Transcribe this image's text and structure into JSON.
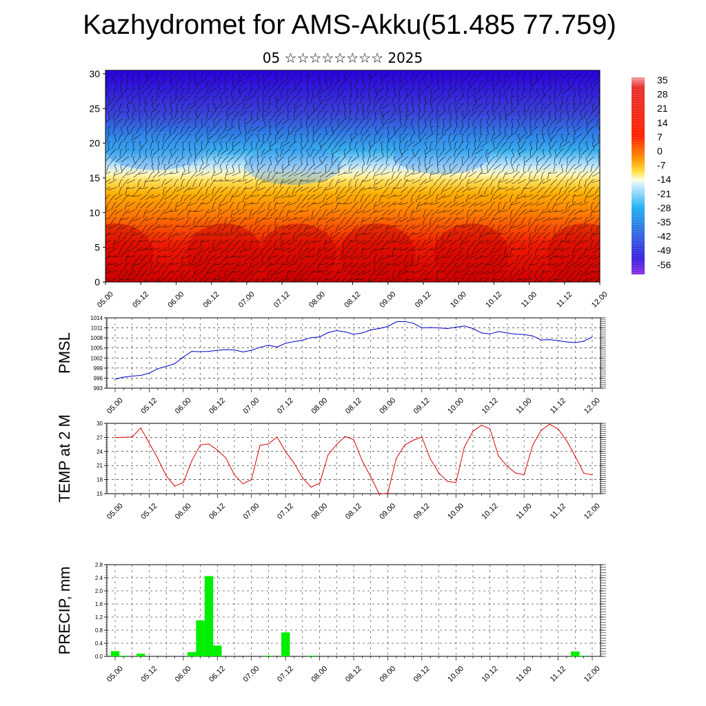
{
  "title": "Kazhydromet for AMS-Akku(51.485 77.759)",
  "subtitle": "05 ☆☆☆☆☆☆☆☆ 2025",
  "colorbar": {
    "labels": [
      "35",
      "28",
      "21",
      "14",
      "7",
      "0",
      "-7",
      "-14",
      "-21",
      "-28",
      "-35",
      "-42",
      "-49",
      "-56"
    ]
  },
  "chart_data": [
    {
      "type": "heatmap",
      "name": "cross-section",
      "x_ticks": [
        "05.00",
        "05.12",
        "06.00",
        "06.12",
        "07.00",
        "07.12",
        "08.00",
        "08.12",
        "09.00",
        "09.12",
        "10.00",
        "10.12",
        "11.00",
        "11.12",
        "12.00"
      ],
      "y_ticks": [
        "0",
        "5",
        "10",
        "15",
        "20",
        "25",
        "30"
      ],
      "ylim": [
        0,
        30.5
      ],
      "zlim": [
        -56,
        35
      ],
      "description_levels_vs_time": "temperature field: warm (red) near 0-8, cold (blue) above 20; wind barbs overlaid"
    },
    {
      "type": "line",
      "ylabel": "PMSL",
      "color": "#0000cc",
      "ylim": [
        993,
        1014
      ],
      "y_ticks": [
        "993",
        "996",
        "999",
        "1002",
        "1005",
        "1008",
        "1011",
        "1014"
      ],
      "x_ticks": [
        "05.00",
        "05.12",
        "06.00",
        "06.12",
        "07.00",
        "07.12",
        "08.00",
        "08.12",
        "09.00",
        "09.12",
        "10.00",
        "10.12",
        "11.00",
        "11.12",
        "12.00"
      ],
      "x": [
        "05.00",
        "05.03",
        "05.06",
        "05.09",
        "05.12",
        "05.15",
        "05.18",
        "05.21",
        "06.00",
        "06.03",
        "06.06",
        "06.09",
        "06.12",
        "06.15",
        "06.18",
        "06.21",
        "07.00",
        "07.03",
        "07.06",
        "07.09",
        "07.12",
        "07.15",
        "07.18",
        "07.21",
        "08.00",
        "08.03",
        "08.06",
        "08.09",
        "08.12",
        "08.15",
        "08.18",
        "08.21",
        "09.00",
        "09.03",
        "09.06",
        "09.09",
        "09.12",
        "09.15",
        "09.18",
        "09.21",
        "10.00",
        "10.03",
        "10.06",
        "10.09",
        "10.12",
        "10.15",
        "10.18",
        "10.21",
        "11.00",
        "11.03",
        "11.06",
        "11.09",
        "11.12",
        "11.15",
        "11.18",
        "11.21",
        "12.00"
      ],
      "values": [
        995.7,
        996.3,
        996.6,
        996.8,
        997.5,
        998.8,
        999.5,
        1000.3,
        1002.3,
        1004.0,
        1003.9,
        1004.0,
        1004.3,
        1004.5,
        1004.4,
        1003.8,
        1004.3,
        1005.2,
        1005.8,
        1005.3,
        1006.4,
        1006.9,
        1007.3,
        1008.1,
        1008.3,
        1009.6,
        1010.2,
        1009.8,
        1009.1,
        1009.5,
        1010.4,
        1010.8,
        1011.4,
        1012.8,
        1012.9,
        1012.4,
        1011.0,
        1011.1,
        1011.0,
        1010.8,
        1011.2,
        1011.6,
        1010.8,
        1009.5,
        1009.2,
        1009.9,
        1009.5,
        1009.1,
        1009.0,
        1008.6,
        1007.4,
        1007.5,
        1007.2,
        1006.8,
        1006.6,
        1007.0,
        1008.3
      ]
    },
    {
      "type": "line",
      "ylabel": "TEMP at 2 M",
      "color": "#dd0000",
      "ylim": [
        15,
        30
      ],
      "y_ticks": [
        "15",
        "18",
        "21",
        "24",
        "27",
        "30"
      ],
      "x_ticks": [
        "05.00",
        "05.12",
        "06.00",
        "06.12",
        "07.00",
        "07.12",
        "08.00",
        "08.12",
        "09.00",
        "09.12",
        "10.00",
        "10.12",
        "11.00",
        "11.12",
        "12.00"
      ],
      "x": [
        "05.00",
        "05.03",
        "05.06",
        "05.09",
        "05.12",
        "05.15",
        "05.18",
        "05.21",
        "06.00",
        "06.03",
        "06.06",
        "06.09",
        "06.12",
        "06.15",
        "06.18",
        "06.21",
        "07.00",
        "07.03",
        "07.06",
        "07.09",
        "07.12",
        "07.15",
        "07.18",
        "07.21",
        "08.00",
        "08.03",
        "08.06",
        "08.09",
        "08.12",
        "08.15",
        "08.18",
        "08.21",
        "09.00",
        "09.03",
        "09.06",
        "09.09",
        "09.12",
        "09.15",
        "09.18",
        "09.21",
        "10.00",
        "10.03",
        "10.06",
        "10.09",
        "10.12",
        "10.15",
        "10.18",
        "10.21",
        "11.00",
        "11.03",
        "11.06",
        "11.09",
        "11.12",
        "11.15",
        "11.18",
        "11.21",
        "12.00"
      ],
      "values": [
        27.0,
        27.0,
        27.1,
        29.0,
        25.8,
        22.5,
        18.8,
        16.6,
        17.4,
        22.0,
        25.4,
        25.6,
        24.3,
        22.6,
        19.0,
        17.1,
        18.0,
        25.3,
        25.6,
        27.1,
        24.0,
        21.5,
        18.4,
        16.4,
        17.2,
        23.3,
        25.5,
        27.2,
        26.5,
        22.0,
        18.6,
        14.9,
        15.1,
        22.5,
        25.4,
        26.4,
        27.1,
        22.4,
        19.4,
        17.6,
        17.4,
        25.0,
        28.3,
        29.6,
        28.8,
        23.0,
        20.9,
        19.4,
        19.0,
        25.3,
        28.5,
        29.8,
        28.8,
        26.3,
        23.0,
        19.4,
        19.0
      ]
    },
    {
      "type": "bar",
      "ylabel": "PRECIP, mm",
      "color": "#00ee00",
      "ylim": [
        0,
        2.8
      ],
      "y_ticks": [
        "0.0",
        "0.4",
        "0.8",
        "1.2",
        "1.6",
        "2.0",
        "2.4",
        "2.8"
      ],
      "x_ticks": [
        "05.00",
        "05.12",
        "06.00",
        "06.12",
        "07.00",
        "07.12",
        "08.00",
        "08.12",
        "09.00",
        "09.12",
        "10.00",
        "10.12",
        "11.00",
        "11.12",
        "12.00"
      ],
      "x": [
        "05.00",
        "05.03",
        "05.06",
        "05.09",
        "05.12",
        "05.15",
        "05.18",
        "05.21",
        "06.00",
        "06.03",
        "06.06",
        "06.09",
        "06.12",
        "06.15",
        "06.18",
        "06.21",
        "07.00",
        "07.03",
        "07.06",
        "07.09",
        "07.12",
        "07.15",
        "07.18",
        "07.21",
        "08.00",
        "08.03",
        "08.06",
        "08.09",
        "08.12",
        "08.15",
        "08.18",
        "08.21",
        "09.00",
        "09.03",
        "09.06",
        "09.09",
        "09.12",
        "09.15",
        "09.18",
        "09.21",
        "10.00",
        "10.03",
        "10.06",
        "10.09",
        "10.12",
        "10.15",
        "10.18",
        "10.21",
        "11.00",
        "11.03",
        "11.06",
        "11.09",
        "11.12",
        "11.15",
        "11.18",
        "11.21",
        "12.00"
      ],
      "values": [
        0.16,
        0.02,
        0.0,
        0.08,
        0.0,
        0.0,
        0.0,
        0.0,
        0.0,
        0.13,
        1.1,
        2.45,
        0.33,
        0.0,
        0.0,
        0.0,
        0.0,
        0.0,
        0.02,
        0.0,
        0.73,
        0.0,
        0.0,
        0.02,
        0.0,
        0.0,
        0.0,
        0.0,
        0.0,
        0.0,
        0.0,
        0.0,
        0.0,
        0.0,
        0.0,
        0.0,
        0.0,
        0.0,
        0.0,
        0.0,
        0.0,
        0.0,
        0.0,
        0.0,
        0.0,
        0.0,
        0.0,
        0.0,
        0.0,
        0.0,
        0.0,
        0.0,
        0.0,
        0.0,
        0.15,
        0.02,
        0.0
      ]
    }
  ]
}
